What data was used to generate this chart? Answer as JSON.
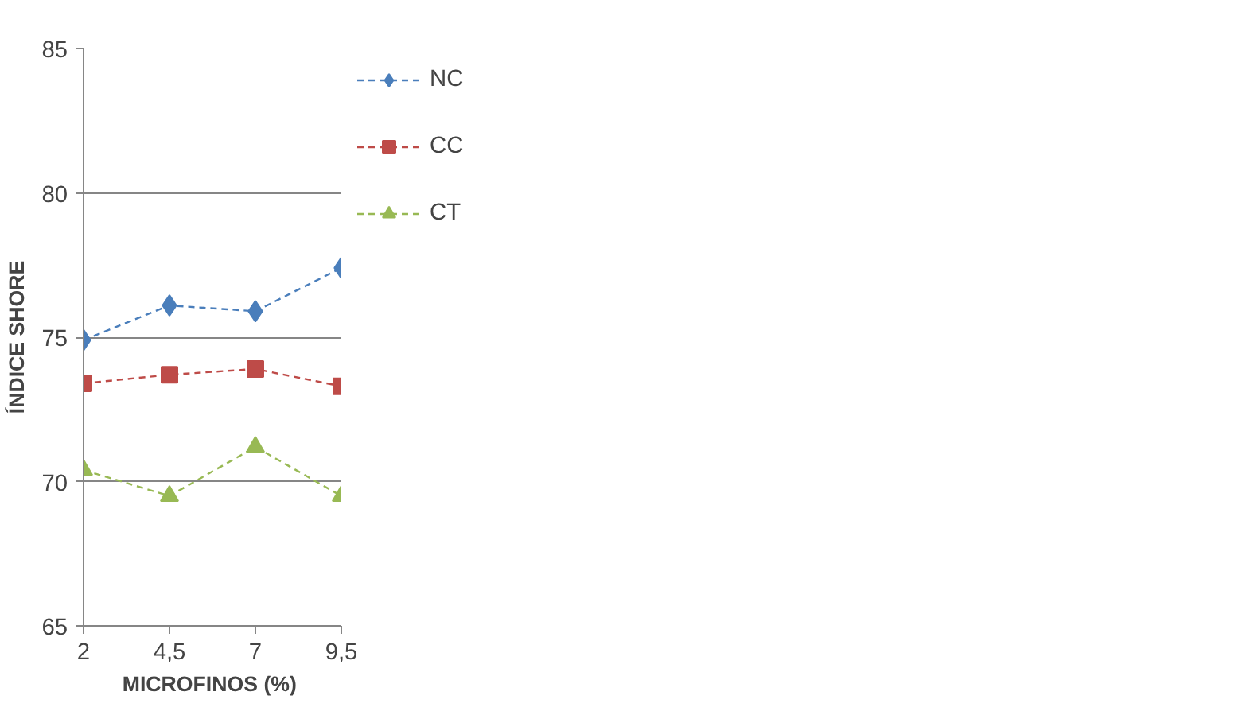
{
  "chart_data": {
    "type": "line",
    "xlabel": "MICROFINOS  (%)",
    "ylabel": "ÍNDICE SHORE",
    "x": [
      2,
      4.5,
      7,
      9.5
    ],
    "series": [
      {
        "name": "NC",
        "color": "#4a7ebb",
        "marker": "diamond",
        "values": [
          74.9,
          76.1,
          75.9,
          77.4
        ]
      },
      {
        "name": "CC",
        "color": "#be4b48",
        "marker": "square",
        "values": [
          73.4,
          73.7,
          73.9,
          73.3
        ]
      },
      {
        "name": "CT",
        "color": "#98b954",
        "marker": "triangle",
        "values": [
          70.4,
          69.5,
          71.2,
          69.5
        ]
      }
    ],
    "xlim": [
      2,
      9.5
    ],
    "xticks": [
      2,
      {
        "value": 4.5,
        "label": "4,5"
      },
      7,
      {
        "value": 9.5,
        "label": "9,5"
      }
    ],
    "ylim": [
      65,
      85
    ],
    "yticks": [
      65,
      70,
      75,
      80,
      85
    ],
    "grid": "y",
    "legend": "right",
    "line_style": "dashed"
  }
}
